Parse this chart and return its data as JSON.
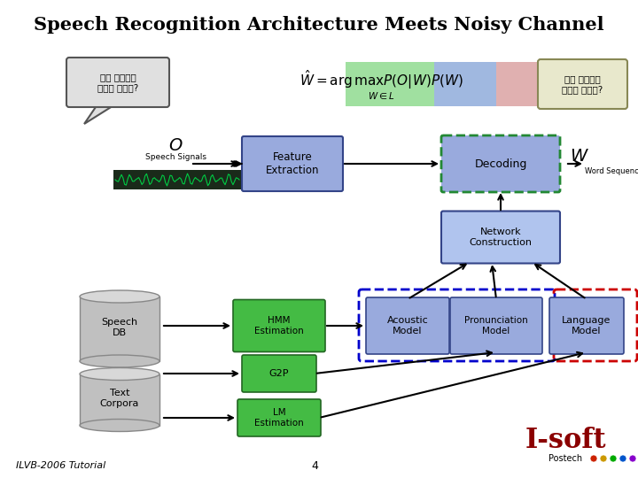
{
  "title": "Speech Recognition Architecture Meets Noisy Channel",
  "bg_color": "#ffffff",
  "title_fontsize": 15,
  "korean_bubble": "버스 정류장이\n어디에 있나요?",
  "korean_output": "버스 정류장이\n어디에 있나요?",
  "footer_left": "ILVB-2006 Tutorial",
  "footer_page": "4"
}
